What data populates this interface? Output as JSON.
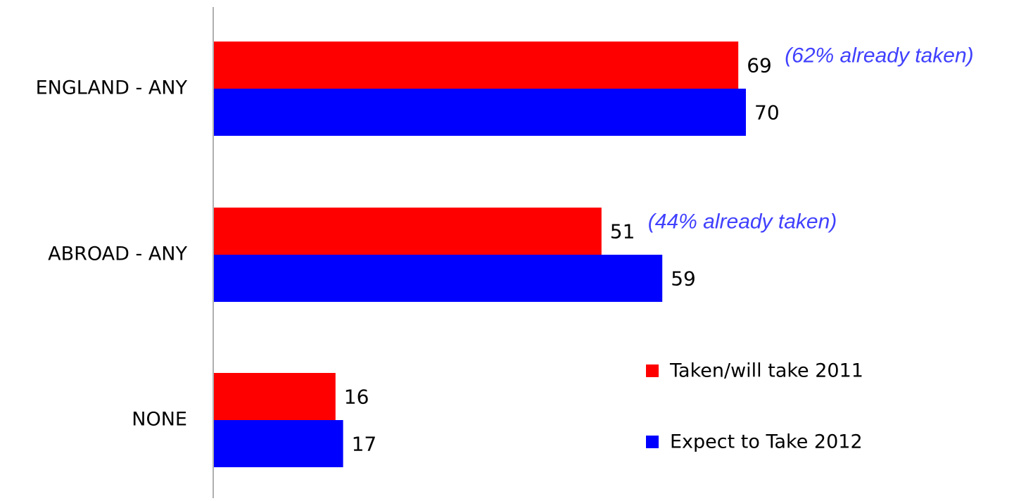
{
  "chart_data": {
    "type": "bar",
    "orientation": "horizontal",
    "categories": [
      "ENGLAND - ANY",
      "ABROAD - ANY",
      "NONE"
    ],
    "series": [
      {
        "name": "Taken/will take 2011",
        "values": [
          69,
          51,
          16
        ],
        "color": "#ff0000"
      },
      {
        "name": "Expect to Take 2012",
        "values": [
          70,
          59,
          17
        ],
        "color": "#0000ff"
      }
    ],
    "annotations": [
      {
        "category": "ENGLAND - ANY",
        "series": "Taken/will take 2011",
        "text": "(62% already taken)"
      },
      {
        "category": "ABROAD - ANY",
        "series": "Taken/will take 2011",
        "text": "(44% already taken)"
      }
    ],
    "annotation_color": "#4040ff",
    "xlim": [
      0,
      100
    ],
    "grid": false,
    "legend": "bottom-right",
    "title": "",
    "xlabel": "",
    "ylabel": ""
  }
}
